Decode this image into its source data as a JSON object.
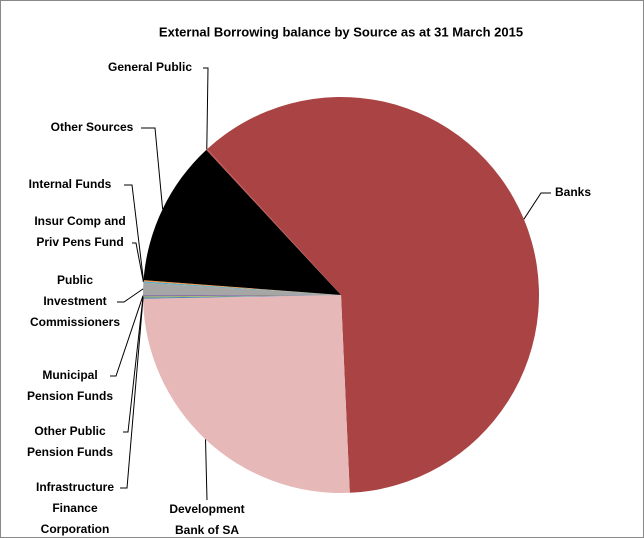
{
  "chart_data": {
    "type": "pie",
    "title": "External Borrowing balance by Source as at 31 March 2015",
    "categories": [
      "Banks",
      "Development\nBank of SA",
      "Infrastructure\nFinance\nCorporation",
      "Other Public\nPension Funds",
      "Municipal\nPension Funds",
      "Public\nInvestment\nCommissioners",
      "Insur Comp and\nPriv Pens Fund",
      "Internal Funds",
      "Other Sources",
      "General Public"
    ],
    "values": [
      61.1,
      25.4,
      0.1,
      0.1,
      0.1,
      1.0,
      0.1,
      0.1,
      11.9,
      0.1
    ],
    "colors": [
      "#aa4444",
      "#e6b9b8",
      "#4f81bd",
      "#9bbb59",
      "#8064a2",
      "#a6a6a6",
      "#4bacc6",
      "#f79646",
      "#000000",
      "#c0504d"
    ]
  }
}
